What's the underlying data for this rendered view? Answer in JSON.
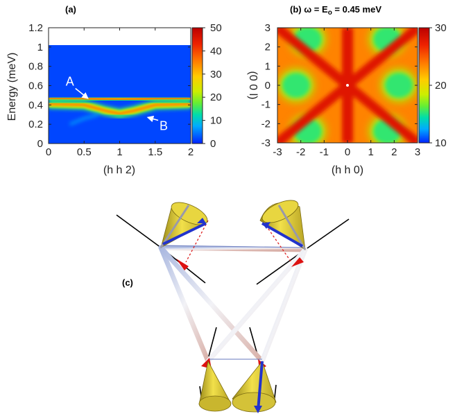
{
  "chart_data": [
    {
      "type": "heatmap",
      "panel_label": "(a)",
      "xlabel": "(h h 2)",
      "ylabel": "Energy (meV)",
      "xlim": [
        0,
        2
      ],
      "ylim": [
        0,
        1.2
      ],
      "x_ticks": [
        "0",
        "0.5",
        "1",
        "1.5",
        "2"
      ],
      "y_ticks": [
        "0",
        "0.2",
        "0.4",
        "0.6",
        "0.8",
        "1",
        "1.2"
      ],
      "colorbar_ticks": [
        "0",
        "10",
        "20",
        "30",
        "40",
        "50"
      ],
      "colorbar_range": [
        0,
        50
      ],
      "data_energy_max": 1.02,
      "background_intensity": 2,
      "bands": [
        {
          "name": "upper",
          "points": [
            [
              0,
              0.47
            ],
            [
              0.5,
              0.465
            ],
            [
              1.0,
              0.455
            ],
            [
              1.5,
              0.465
            ],
            [
              2.0,
              0.47
            ]
          ],
          "peak_intensity": 38
        },
        {
          "name": "lower",
          "points": [
            [
              0,
              0.41
            ],
            [
              0.5,
              0.4
            ],
            [
              0.8,
              0.34
            ],
            [
              1.0,
              0.31
            ],
            [
              1.2,
              0.34
            ],
            [
              1.5,
              0.4
            ],
            [
              2.0,
              0.41
            ]
          ],
          "peak_intensity": 35
        },
        {
          "name": "faint",
          "points": [
            [
              0.3,
              0.2
            ],
            [
              0.5,
              0.26
            ],
            [
              0.7,
              0.3
            ]
          ],
          "peak_intensity": 8
        }
      ],
      "annotations": [
        {
          "text": "A",
          "x": 0.3,
          "y": 0.6,
          "arrow_to": [
            0.55,
            0.47
          ]
        },
        {
          "text": "B",
          "x": 1.62,
          "y": 0.14,
          "arrow_to": [
            1.4,
            0.27
          ]
        }
      ]
    },
    {
      "type": "heatmap",
      "panel_label": "(b)",
      "title_prefix": "(b) ω = E",
      "title_sub": "o",
      "title_suffix": " = 0.45 meV",
      "xlabel": "(h h 0)",
      "ylabel": "(0 0 l)",
      "xlim": [
        -3,
        3
      ],
      "ylim": [
        -3,
        3
      ],
      "x_ticks": [
        "-3",
        "-2",
        "-1",
        "0",
        "1",
        "2",
        "3"
      ],
      "y_ticks": [
        "-3",
        "-2",
        "-1",
        "0",
        "1",
        "2",
        "3"
      ],
      "colorbar_ticks": [
        "10",
        "20",
        "30"
      ],
      "colorbar_range": [
        10,
        30
      ],
      "features": {
        "diagonal_lines_intensity": 28,
        "green_lobe_centers": [
          [
            -2.2,
            0
          ],
          [
            2.2,
            0
          ],
          [
            -1.7,
            2.4
          ],
          [
            1.7,
            2.4
          ],
          [
            -1.7,
            -2.4
          ],
          [
            1.7,
            -2.4
          ]
        ],
        "green_lobe_intensity": 16,
        "background_intensity": 24
      }
    }
  ],
  "figure_c": {
    "label": "(c)",
    "description_kind": "spin-cone-tetrahedron"
  }
}
